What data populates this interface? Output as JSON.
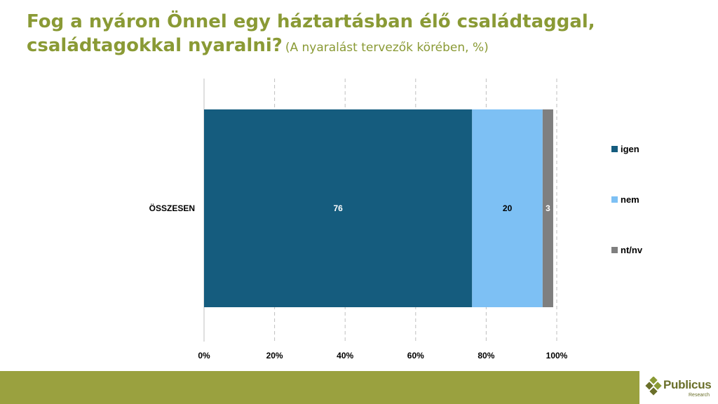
{
  "title": {
    "line1": "Fog a nyáron Önnel egy háztartásban élő családtaggal,",
    "line2": "családtagokkal nyaralni?",
    "subtitle": "(A nyaralást tervezők körében, %)"
  },
  "logo": {
    "name": "Publicus",
    "sub": "Research"
  },
  "colors": {
    "title": "#8a9a35",
    "footer": "#9aa13f",
    "igen": "#155c7e",
    "nem": "#7dc0f4",
    "ntnv": "#7f7f7f"
  },
  "chart_data": {
    "type": "bar",
    "orientation": "horizontal",
    "stacked": true,
    "categories": [
      "ÖSSZESEN"
    ],
    "series": [
      {
        "name": "igen",
        "values": [
          76
        ],
        "color": "#155c7e",
        "label_color": "#ffffff"
      },
      {
        "name": "nem",
        "values": [
          20
        ],
        "color": "#7dc0f4",
        "label_color": "#000000"
      },
      {
        "name": "nt/nv",
        "values": [
          3
        ],
        "color": "#7f7f7f",
        "label_color": "#ffffff"
      }
    ],
    "xlim": [
      0,
      100
    ],
    "ticks": [
      "0%",
      "20%",
      "40%",
      "60%",
      "80%",
      "100%"
    ],
    "grid": "vertical dashed",
    "legend_position": "right"
  }
}
